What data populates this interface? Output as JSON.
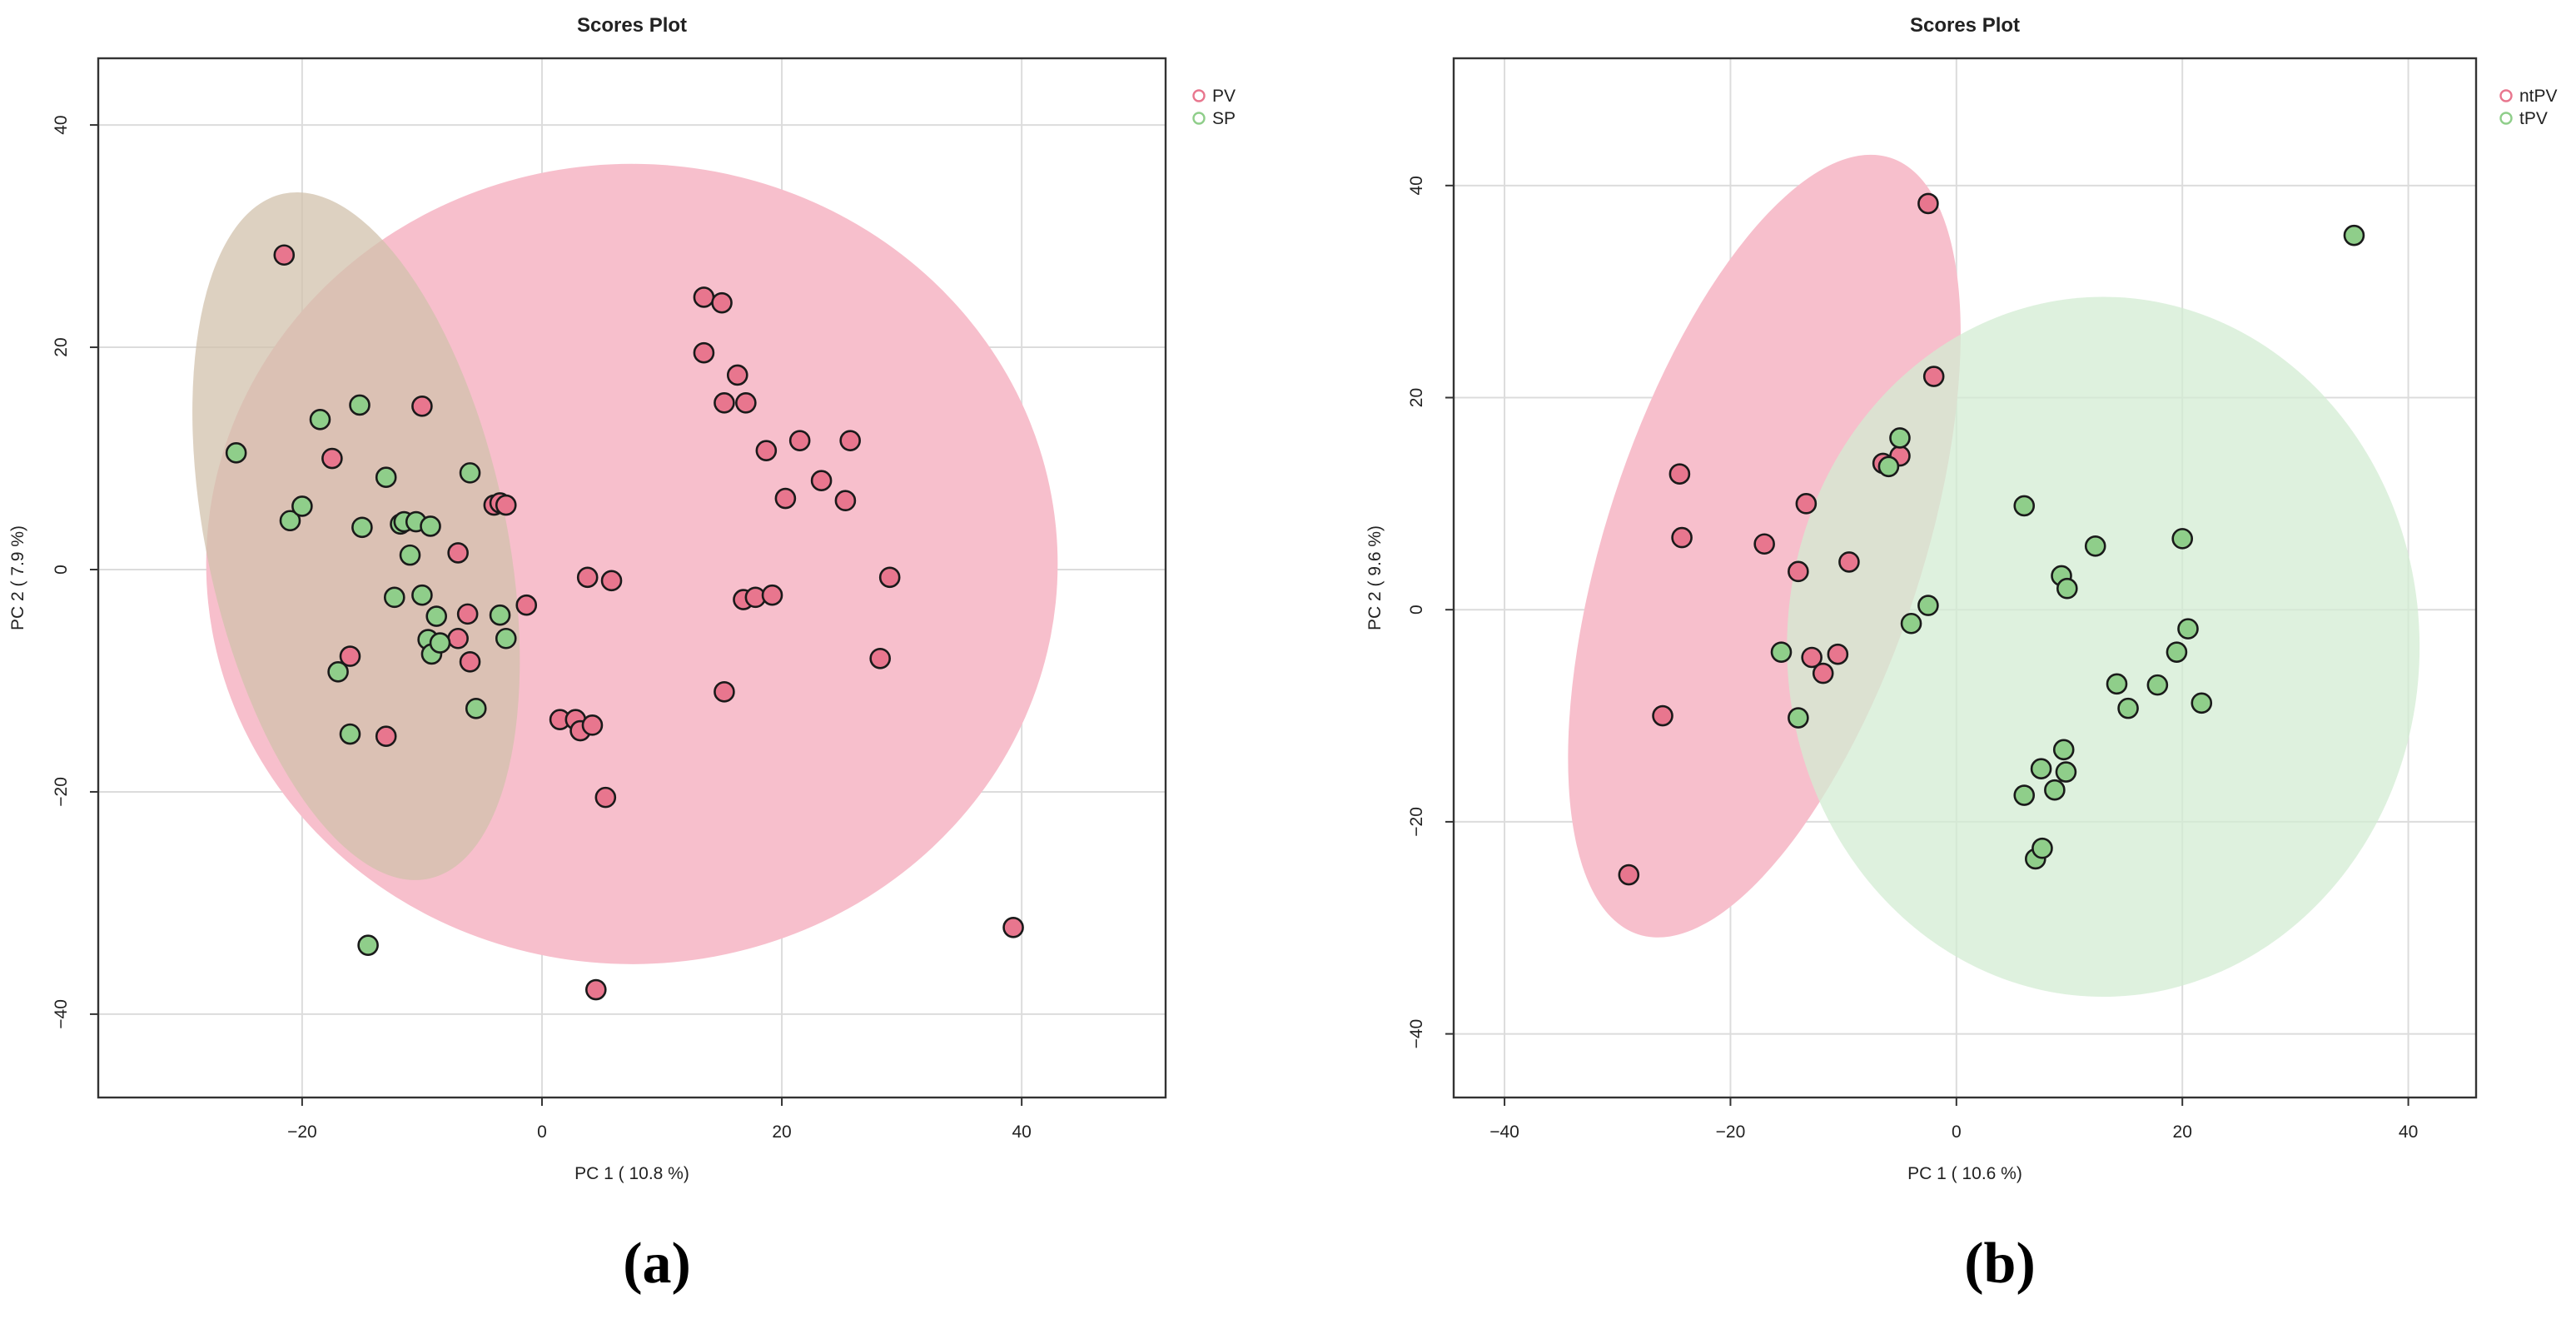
{
  "chart_data": [
    {
      "type": "scatter",
      "panel_label": "(a)",
      "title": "Scores Plot",
      "xlabel": "PC 1 ( 10.8 %)",
      "ylabel": "PC 2 ( 7.9 %)",
      "xlim": [
        -37,
        52
      ],
      "ylim": [
        -47.5,
        46
      ],
      "xticks": [
        -20,
        0,
        20,
        40
      ],
      "yticks": [
        -40,
        -20,
        0,
        20,
        40
      ],
      "xtick_labels": [
        "−20",
        "0",
        "20",
        "40"
      ],
      "ytick_labels": [
        "−40",
        "−20",
        "0",
        "20",
        "40"
      ],
      "grid": true,
      "legend_position": "top-right",
      "series": [
        {
          "name": "PV",
          "color": "#e8768e",
          "ellipse": {
            "cx": 7.5,
            "cy": 0.5,
            "rx": 35.5,
            "ry": 36,
            "angle": 0,
            "fill": "#f7bfcc"
          },
          "points": [
            [
              -21.5,
              28.3
            ],
            [
              -17.5,
              10
            ],
            [
              -16,
              -7.8
            ],
            [
              -13,
              -15
            ],
            [
              -10,
              14.7
            ],
            [
              -7,
              1.5
            ],
            [
              -7,
              -6.2
            ],
            [
              -6.2,
              -4
            ],
            [
              -6,
              -8.3
            ],
            [
              -4,
              5.8
            ],
            [
              -3.5,
              6
            ],
            [
              -3,
              5.8
            ],
            [
              -1.3,
              -3.2
            ],
            [
              1.5,
              -13.5
            ],
            [
              2.8,
              -13.5
            ],
            [
              3.2,
              -14.5
            ],
            [
              3.8,
              -0.7
            ],
            [
              4.2,
              -14
            ],
            [
              4.5,
              -37.8
            ],
            [
              5.3,
              -20.5
            ],
            [
              5.8,
              -1
            ],
            [
              13.5,
              24.5
            ],
            [
              13.5,
              19.5
            ],
            [
              15,
              24
            ],
            [
              15.2,
              15
            ],
            [
              15.2,
              -11
            ],
            [
              16.3,
              17.5
            ],
            [
              16.8,
              -2.7
            ],
            [
              17,
              15
            ],
            [
              17.8,
              -2.5
            ],
            [
              18.7,
              10.7
            ],
            [
              19.2,
              -2.3
            ],
            [
              20.3,
              6.4
            ],
            [
              21.5,
              11.6
            ],
            [
              23.3,
              8
            ],
            [
              25.3,
              6.2
            ],
            [
              25.7,
              11.6
            ],
            [
              28.2,
              -8
            ],
            [
              29,
              -0.7
            ],
            [
              39.3,
              -32.2
            ]
          ]
        },
        {
          "name": "SP",
          "color": "#8fce8a",
          "ellipse": {
            "cx": -15.5,
            "cy": 3,
            "rx": 12.5,
            "ry": 31.5,
            "angle": -12,
            "fill": "#d2c2ac"
          },
          "points": [
            [
              -25.5,
              10.5
            ],
            [
              -21,
              4.4
            ],
            [
              -20,
              5.7
            ],
            [
              -18.5,
              13.5
            ],
            [
              -17,
              -9.2
            ],
            [
              -16,
              -14.8
            ],
            [
              -15.2,
              14.8
            ],
            [
              -15,
              3.8
            ],
            [
              -14.5,
              -33.8
            ],
            [
              -13,
              8.3
            ],
            [
              -12.3,
              -2.5
            ],
            [
              -11.8,
              4.1
            ],
            [
              -11.5,
              4.3
            ],
            [
              -11,
              1.3
            ],
            [
              -10.5,
              4.3
            ],
            [
              -10,
              -2.3
            ],
            [
              -9.5,
              -6.3
            ],
            [
              -9.3,
              3.9
            ],
            [
              -9.2,
              -7.6
            ],
            [
              -8.8,
              -4.2
            ],
            [
              -8.5,
              -6.6
            ],
            [
              -6,
              8.7
            ],
            [
              -5.5,
              -12.5
            ],
            [
              -3.5,
              -4.1
            ],
            [
              -3,
              -6.2
            ]
          ]
        }
      ]
    },
    {
      "type": "scatter",
      "panel_label": "(b)",
      "title": "Scores Plot",
      "xlabel": "PC 1 ( 10.6 %)",
      "ylabel": "PC 2 ( 9.6 %)",
      "xlim": [
        -44.5,
        46
      ],
      "ylim": [
        -46,
        52
      ],
      "xticks": [
        -40,
        -20,
        0,
        20,
        40
      ],
      "yticks": [
        -40,
        -20,
        0,
        20,
        40
      ],
      "xtick_labels": [
        "−40",
        "−20",
        "0",
        "20",
        "40"
      ],
      "ytick_labels": [
        "−40",
        "−20",
        "0",
        "20",
        "40"
      ],
      "grid": true,
      "legend_position": "top-right",
      "series": [
        {
          "name": "ntPV",
          "color": "#e8768e",
          "ellipse": {
            "cx": -17,
            "cy": 6,
            "rx": 14,
            "ry": 38.5,
            "angle": 18,
            "fill": "#f7bfcc"
          },
          "points": [
            [
              -29,
              -25
            ],
            [
              -26,
              -10
            ],
            [
              -24.5,
              12.8
            ],
            [
              -24.3,
              6.8
            ],
            [
              -17,
              6.2
            ],
            [
              -14,
              3.6
            ],
            [
              -13.3,
              10
            ],
            [
              -12.8,
              -4.5
            ],
            [
              -11.8,
              -6
            ],
            [
              -10.5,
              -4.2
            ],
            [
              -9.5,
              4.5
            ],
            [
              -6.5,
              13.8
            ],
            [
              -5,
              14.5
            ],
            [
              -2.5,
              38.3
            ],
            [
              -2,
              22
            ]
          ]
        },
        {
          "name": "tPV",
          "color": "#8fce8a",
          "ellipse": {
            "cx": 13,
            "cy": -3.5,
            "rx": 28,
            "ry": 33,
            "angle": 0,
            "fill": "#d3ecd3"
          },
          "points": [
            [
              -15.5,
              -4
            ],
            [
              -14,
              -10.2
            ],
            [
              -6,
              13.5
            ],
            [
              -5,
              16.2
            ],
            [
              -4,
              -1.3
            ],
            [
              -2.5,
              0.4
            ],
            [
              6,
              9.8
            ],
            [
              6,
              -17.5
            ],
            [
              7,
              -23.5
            ],
            [
              7.5,
              -15
            ],
            [
              7.6,
              -22.5
            ],
            [
              8.7,
              -17
            ],
            [
              9.3,
              3.2
            ],
            [
              9.5,
              -13.2
            ],
            [
              9.7,
              -15.3
            ],
            [
              9.8,
              2
            ],
            [
              12.3,
              6
            ],
            [
              14.2,
              -7
            ],
            [
              15.2,
              -9.3
            ],
            [
              17.8,
              -7.1
            ],
            [
              19.5,
              -4
            ],
            [
              20,
              6.7
            ],
            [
              20.5,
              -1.8
            ],
            [
              21.7,
              -8.8
            ],
            [
              35.2,
              35.3
            ]
          ]
        }
      ]
    }
  ]
}
